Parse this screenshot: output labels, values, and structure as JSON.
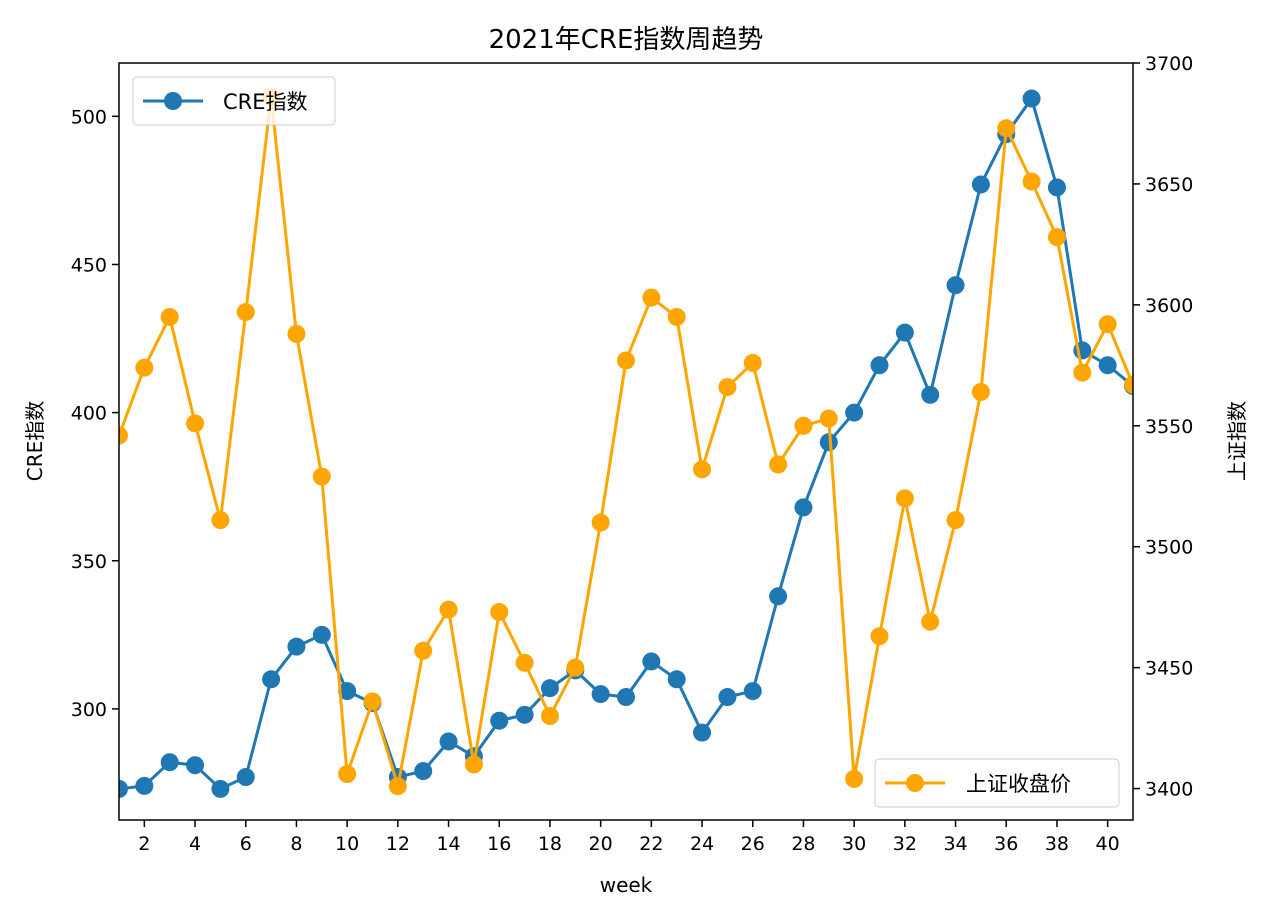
{
  "chart_data": {
    "type": "line",
    "title": "2021年CRE指数周趋势",
    "xlabel": "week",
    "ylabel": "CRE指数",
    "y2label": "上证指数",
    "xlim": [
      1,
      41
    ],
    "ylim": [
      262.5,
      518
    ],
    "y2lim": [
      3387,
      3700
    ],
    "x_ticks": [
      2,
      4,
      6,
      8,
      10,
      12,
      14,
      16,
      18,
      20,
      22,
      24,
      26,
      28,
      30,
      32,
      34,
      36,
      38,
      40
    ],
    "y_ticks": [
      300,
      350,
      400,
      450,
      500
    ],
    "y2_ticks": [
      3400,
      3450,
      3500,
      3550,
      3600,
      3650,
      3700
    ],
    "grid": false,
    "series": [
      {
        "name": "CRE指数",
        "axis": "left",
        "color": "#1f77b4",
        "legend_position": "upper-left",
        "x": [
          1,
          2,
          3,
          4,
          5,
          6,
          7,
          8,
          9,
          10,
          11,
          12,
          13,
          14,
          15,
          16,
          17,
          18,
          19,
          20,
          21,
          22,
          23,
          24,
          25,
          26,
          27,
          28,
          29,
          30,
          31,
          32,
          33,
          34,
          35,
          36,
          37,
          38,
          39,
          40,
          41
        ],
        "values": [
          273,
          274,
          282,
          281,
          273,
          277,
          310,
          321,
          325,
          306,
          302,
          277,
          279,
          289,
          284,
          296,
          298,
          307,
          313,
          305,
          304,
          316,
          310,
          292,
          304,
          306,
          338,
          368,
          390,
          400,
          416,
          427,
          406,
          443,
          477,
          494,
          506,
          476,
          421,
          416,
          409
        ]
      },
      {
        "name": "上证收盘价",
        "axis": "right",
        "color": "#ffa500",
        "legend_position": "lower-right",
        "x": [
          1,
          2,
          3,
          4,
          5,
          6,
          7,
          8,
          9,
          10,
          11,
          12,
          13,
          14,
          15,
          16,
          17,
          18,
          19,
          20,
          21,
          22,
          23,
          24,
          25,
          26,
          27,
          28,
          29,
          30,
          31,
          32,
          33,
          34,
          35,
          36,
          37,
          38,
          39,
          40,
          41
        ],
        "values": [
          3546,
          3574,
          3595,
          3551,
          3511,
          3597,
          3686,
          3588,
          3529,
          3406,
          3436,
          3401,
          3457,
          3474,
          3410,
          3473,
          3452,
          3430,
          3450,
          3510,
          3577,
          3603,
          3595,
          3532,
          3566,
          3576,
          3534,
          3550,
          3553,
          3404,
          3463,
          3520,
          3469,
          3511,
          3564,
          3673,
          3651,
          3628,
          3572,
          3592,
          3567
        ]
      }
    ]
  }
}
